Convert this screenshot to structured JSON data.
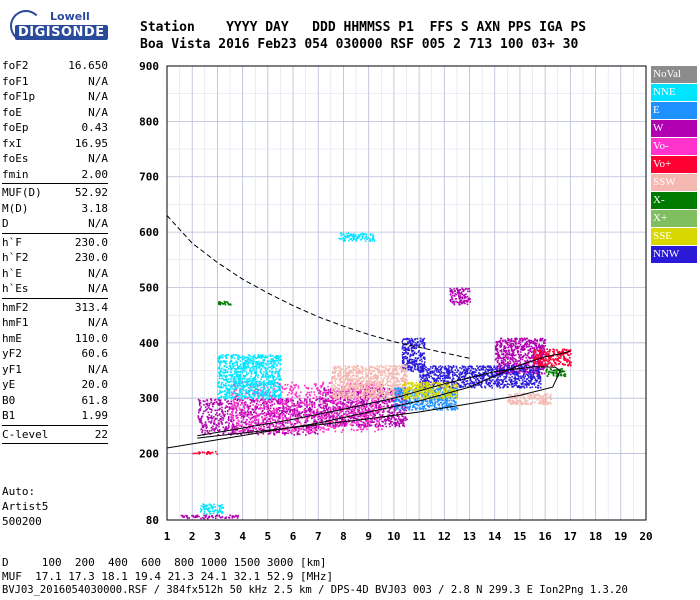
{
  "header": {
    "line1": "Station    YYYY DAY   DDD HHMMSS P1  FFS S AXN PPS IGA PS",
    "line2": "Boa Vista 2016 Feb23 054 030000 RSF 005 2 713 100 03+ 30"
  },
  "logo": {
    "top": "Lowell",
    "main": "DIGISONDE"
  },
  "params": [
    {
      "label": "foF2",
      "value": "16.650"
    },
    {
      "label": "foF1",
      "value": "N/A"
    },
    {
      "label": "foF1p",
      "value": "N/A"
    },
    {
      "label": "foE",
      "value": "N/A"
    },
    {
      "label": "foEp",
      "value": "0.43"
    },
    {
      "label": "fxI",
      "value": "16.95"
    },
    {
      "label": "foEs",
      "value": "N/A"
    },
    {
      "label": "fmin",
      "value": "2.00"
    },
    {
      "sep": true
    },
    {
      "label": "MUF(D)",
      "value": "52.92"
    },
    {
      "label": "M(D)",
      "value": "3.18"
    },
    {
      "label": "D",
      "value": "N/A"
    },
    {
      "sep": true
    },
    {
      "label": "h`F",
      "value": "230.0"
    },
    {
      "label": "h`F2",
      "value": "230.0"
    },
    {
      "label": "h`E",
      "value": "N/A"
    },
    {
      "label": "h`Es",
      "value": "N/A"
    },
    {
      "sep": true
    },
    {
      "label": "hmF2",
      "value": "313.4"
    },
    {
      "label": "hmF1",
      "value": "N/A"
    },
    {
      "label": "hmE",
      "value": "110.0"
    },
    {
      "label": "yF2",
      "value": "60.6"
    },
    {
      "label": "yF1",
      "value": "N/A"
    },
    {
      "label": "yE",
      "value": "20.0"
    },
    {
      "label": "B0",
      "value": "61.8"
    },
    {
      "label": "B1",
      "value": "1.99"
    },
    {
      "sep": true
    },
    {
      "label": "C-level",
      "value": "22"
    },
    {
      "sep": true
    }
  ],
  "auto": {
    "l1": "Auto:",
    "l2": "Artist5",
    "l3": "500200"
  },
  "footer": {
    "d_row": "D     100  200  400  600  800 1000 1500 3000 [km]",
    "muf_row": "MUF  17.1 17.3 18.1 19.4 21.3 24.1 32.1 52.9 [MHz]",
    "file_row": "BVJ03_2016054030000.RSF / 384fx512h 50 kHz 2.5 km / DPS-4D BVJ03 003 / 2.8 N 299.3 E Ion2Png 1.3.20"
  },
  "legend": [
    {
      "label": "NoVal",
      "bg": "#8c8c8c",
      "fg": "#ffffff"
    },
    {
      "label": "NNE",
      "bg": "#00e5ff",
      "fg": "#ffffff"
    },
    {
      "label": "E",
      "bg": "#1e90ff",
      "fg": "#ffffff"
    },
    {
      "label": "W",
      "bg": "#b000b0",
      "fg": "#ffffff"
    },
    {
      "label": "Vo-",
      "bg": "#ff33cc",
      "fg": "#ffffff"
    },
    {
      "label": "Vo+",
      "bg": "#ff0033",
      "fg": "#ffffff"
    },
    {
      "label": "SSW",
      "bg": "#f4b8b0",
      "fg": "#ffffff"
    },
    {
      "label": "X-",
      "bg": "#007a00",
      "fg": "#ffffff"
    },
    {
      "label": "X+",
      "bg": "#7fbf5f",
      "fg": "#ffffff"
    },
    {
      "label": "SSE",
      "bg": "#d8d800",
      "fg": "#ffffff"
    },
    {
      "label": "NNW",
      "bg": "#2a1ad8",
      "fg": "#ffffff"
    }
  ],
  "chart_data": {
    "type": "scatter",
    "xlim": [
      1,
      20
    ],
    "ylim": [
      80,
      900
    ],
    "x_ticks": [
      1,
      2,
      3,
      4,
      5,
      6,
      7,
      8,
      9,
      10,
      11,
      12,
      13,
      14,
      15,
      16,
      17,
      18,
      19,
      20
    ],
    "y_ticks": [
      80,
      200,
      300,
      400,
      500,
      600,
      700,
      800,
      900
    ],
    "grid": true,
    "echo_clusters": [
      {
        "direction": "W",
        "x": [
          2.2,
          7.0
        ],
        "y": [
          235,
          300
        ]
      },
      {
        "direction": "W",
        "x": [
          7.0,
          10.5
        ],
        "y": [
          250,
          320
        ]
      },
      {
        "direction": "Vo-",
        "x": [
          3.5,
          9.5
        ],
        "y": [
          240,
          330
        ]
      },
      {
        "direction": "W",
        "x": [
          14.0,
          16.0
        ],
        "y": [
          345,
          410
        ]
      },
      {
        "direction": "NNW",
        "x": [
          11.0,
          15.8
        ],
        "y": [
          320,
          360
        ]
      },
      {
        "direction": "NNW",
        "x": [
          10.3,
          11.2
        ],
        "y": [
          350,
          410
        ]
      },
      {
        "direction": "W",
        "x": [
          12.2,
          13.0
        ],
        "y": [
          470,
          500
        ]
      },
      {
        "direction": "SSW",
        "x": [
          7.5,
          10.5
        ],
        "y": [
          300,
          360
        ]
      },
      {
        "direction": "NNE",
        "x": [
          3.0,
          5.5
        ],
        "y": [
          300,
          380
        ]
      },
      {
        "direction": "E",
        "x": [
          10.0,
          12.5
        ],
        "y": [
          280,
          320
        ]
      },
      {
        "direction": "SSW",
        "x": [
          14.5,
          16.2
        ],
        "y": [
          290,
          310
        ]
      },
      {
        "direction": "SSE",
        "x": [
          10.3,
          12.5
        ],
        "y": [
          300,
          330
        ]
      },
      {
        "direction": "Vo+",
        "x": [
          15.5,
          17.0
        ],
        "y": [
          360,
          390
        ]
      },
      {
        "direction": "X-",
        "x": [
          16.0,
          16.8
        ],
        "y": [
          340,
          355
        ]
      },
      {
        "direction": "NNE",
        "x": [
          7.8,
          9.2
        ],
        "y": [
          585,
          600
        ]
      },
      {
        "direction": "NNE",
        "x": [
          2.3,
          3.2
        ],
        "y": [
          92,
          110
        ]
      },
      {
        "direction": "W",
        "x": [
          1.5,
          3.8
        ],
        "y": [
          84,
          90
        ]
      },
      {
        "direction": "Vo+",
        "x": [
          2.0,
          3.0
        ],
        "y": [
          200,
          205
        ]
      },
      {
        "direction": "X-",
        "x": [
          3.0,
          3.5
        ],
        "y": [
          470,
          476
        ]
      }
    ],
    "trace_curve": [
      [
        1,
        210
      ],
      [
        3,
        225
      ],
      [
        5,
        240
      ],
      [
        7,
        255
      ],
      [
        9,
        275
      ],
      [
        11,
        295
      ],
      [
        13,
        320
      ],
      [
        14,
        340
      ],
      [
        15,
        360
      ],
      [
        16,
        375
      ],
      [
        16.6,
        380
      ],
      [
        17.0,
        385
      ]
    ],
    "profile_solid": [
      [
        2.2,
        232
      ],
      [
        4,
        246
      ],
      [
        6,
        262
      ],
      [
        8,
        280
      ],
      [
        10,
        300
      ],
      [
        12,
        326
      ],
      [
        14,
        348
      ],
      [
        15.6,
        357
      ],
      [
        16.4,
        356
      ],
      [
        16.6,
        350
      ],
      [
        16.3,
        320
      ],
      [
        15,
        305
      ],
      [
        13,
        290
      ],
      [
        11,
        275
      ],
      [
        9,
        263
      ],
      [
        7,
        252
      ],
      [
        5,
        242
      ],
      [
        3,
        232
      ],
      [
        2.2,
        228
      ]
    ],
    "profile_dashed": [
      [
        1,
        630
      ],
      [
        2,
        580
      ],
      [
        3,
        545
      ],
      [
        4,
        515
      ],
      [
        5,
        490
      ],
      [
        6,
        467
      ],
      [
        7,
        447
      ],
      [
        8,
        430
      ],
      [
        9,
        415
      ],
      [
        10,
        402
      ],
      [
        11,
        392
      ],
      [
        12,
        382
      ],
      [
        13,
        372
      ]
    ]
  }
}
